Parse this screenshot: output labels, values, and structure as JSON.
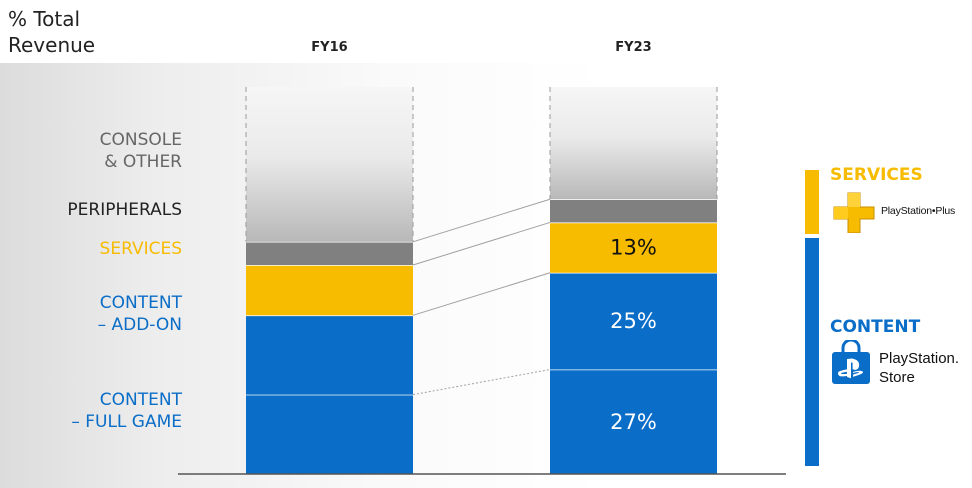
{
  "chart_data": {
    "type": "bar",
    "stacked": true,
    "ylabel": "% Total\nRevenue",
    "categories": [
      "FY16",
      "FY23"
    ],
    "series": [
      {
        "name": "CONTENT\n– FULL GAME",
        "values": [
          20.5,
          27
        ],
        "color": "#0a6dc7",
        "labels": [
          "",
          "27%"
        ]
      },
      {
        "name": "CONTENT\n– ADD-ON",
        "values": [
          20.5,
          25
        ],
        "color": "#0a6dc7",
        "labels": [
          "",
          "25%"
        ]
      },
      {
        "name": "SERVICES",
        "values": [
          13,
          13
        ],
        "color": "#f7bb00",
        "labels": [
          "",
          "13%"
        ]
      },
      {
        "name": "PERIPHERALS",
        "values": [
          6,
          6
        ],
        "color": "#808080",
        "labels": [
          "",
          ""
        ]
      },
      {
        "name": "CONSOLE\n& OTHER",
        "values": [
          40,
          29
        ],
        "color": "#d8d8d8",
        "labels": [
          "",
          ""
        ]
      }
    ],
    "ylim": [
      0,
      100
    ],
    "grid": false,
    "legend": "right"
  },
  "legend": {
    "services_title": "SERVICES",
    "psplus_text": "PlayStation•Plus",
    "content_title": "CONTENT",
    "psstore_text": "PlayStation.\nStore"
  },
  "colors": {
    "content": "#0a6dc7",
    "services": "#f7bb00",
    "peripherals": "#808080",
    "console_label": "#666666"
  },
  "icons": [
    "playstation-plus-icon",
    "playstation-store-icon"
  ]
}
